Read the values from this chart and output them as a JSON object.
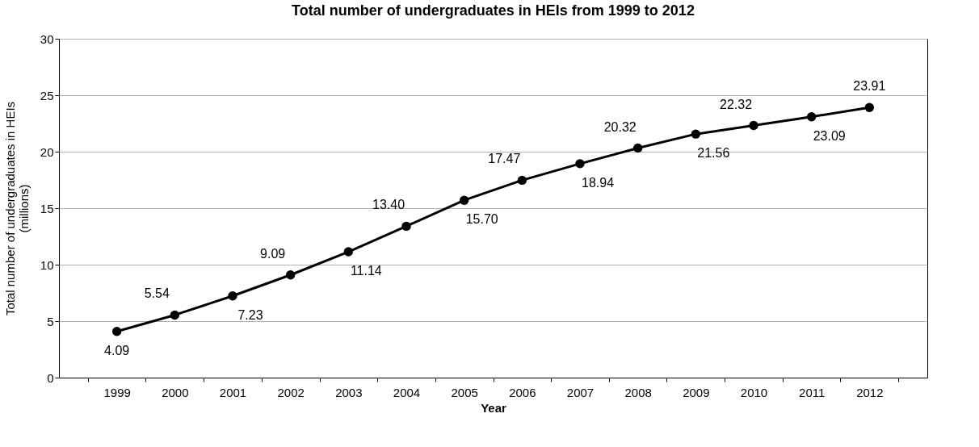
{
  "chart_data": {
    "type": "line",
    "title": "Total number of undergraduates in HEIs from 1999 to 2012",
    "xlabel": "Year",
    "ylabel": "Total number of undergraduates in HEIs\n(millions)",
    "categories": [
      "1999",
      "2000",
      "2001",
      "2002",
      "2003",
      "2004",
      "2005",
      "2006",
      "2007",
      "2008",
      "2009",
      "2010",
      "2011",
      "2012"
    ],
    "series": [
      {
        "color": "#000000",
        "values": [
          4.09,
          5.54,
          7.23,
          9.09,
          11.14,
          13.4,
          15.7,
          17.47,
          18.94,
          20.32,
          21.56,
          22.32,
          23.09,
          23.91
        ],
        "value_labels": [
          "4.09",
          "5.54",
          "7.23",
          "9.09",
          "11.14",
          "13.40",
          "15.70",
          "17.47",
          "18.94",
          "20.32",
          "21.56",
          "22.32",
          "23.09",
          "23.91"
        ]
      }
    ],
    "ylim": [
      0,
      30
    ],
    "yticks": [
      0,
      5,
      10,
      15,
      20,
      25,
      30
    ],
    "grid": "y",
    "marker": "circle",
    "line_style": "solid",
    "legend": false
  }
}
